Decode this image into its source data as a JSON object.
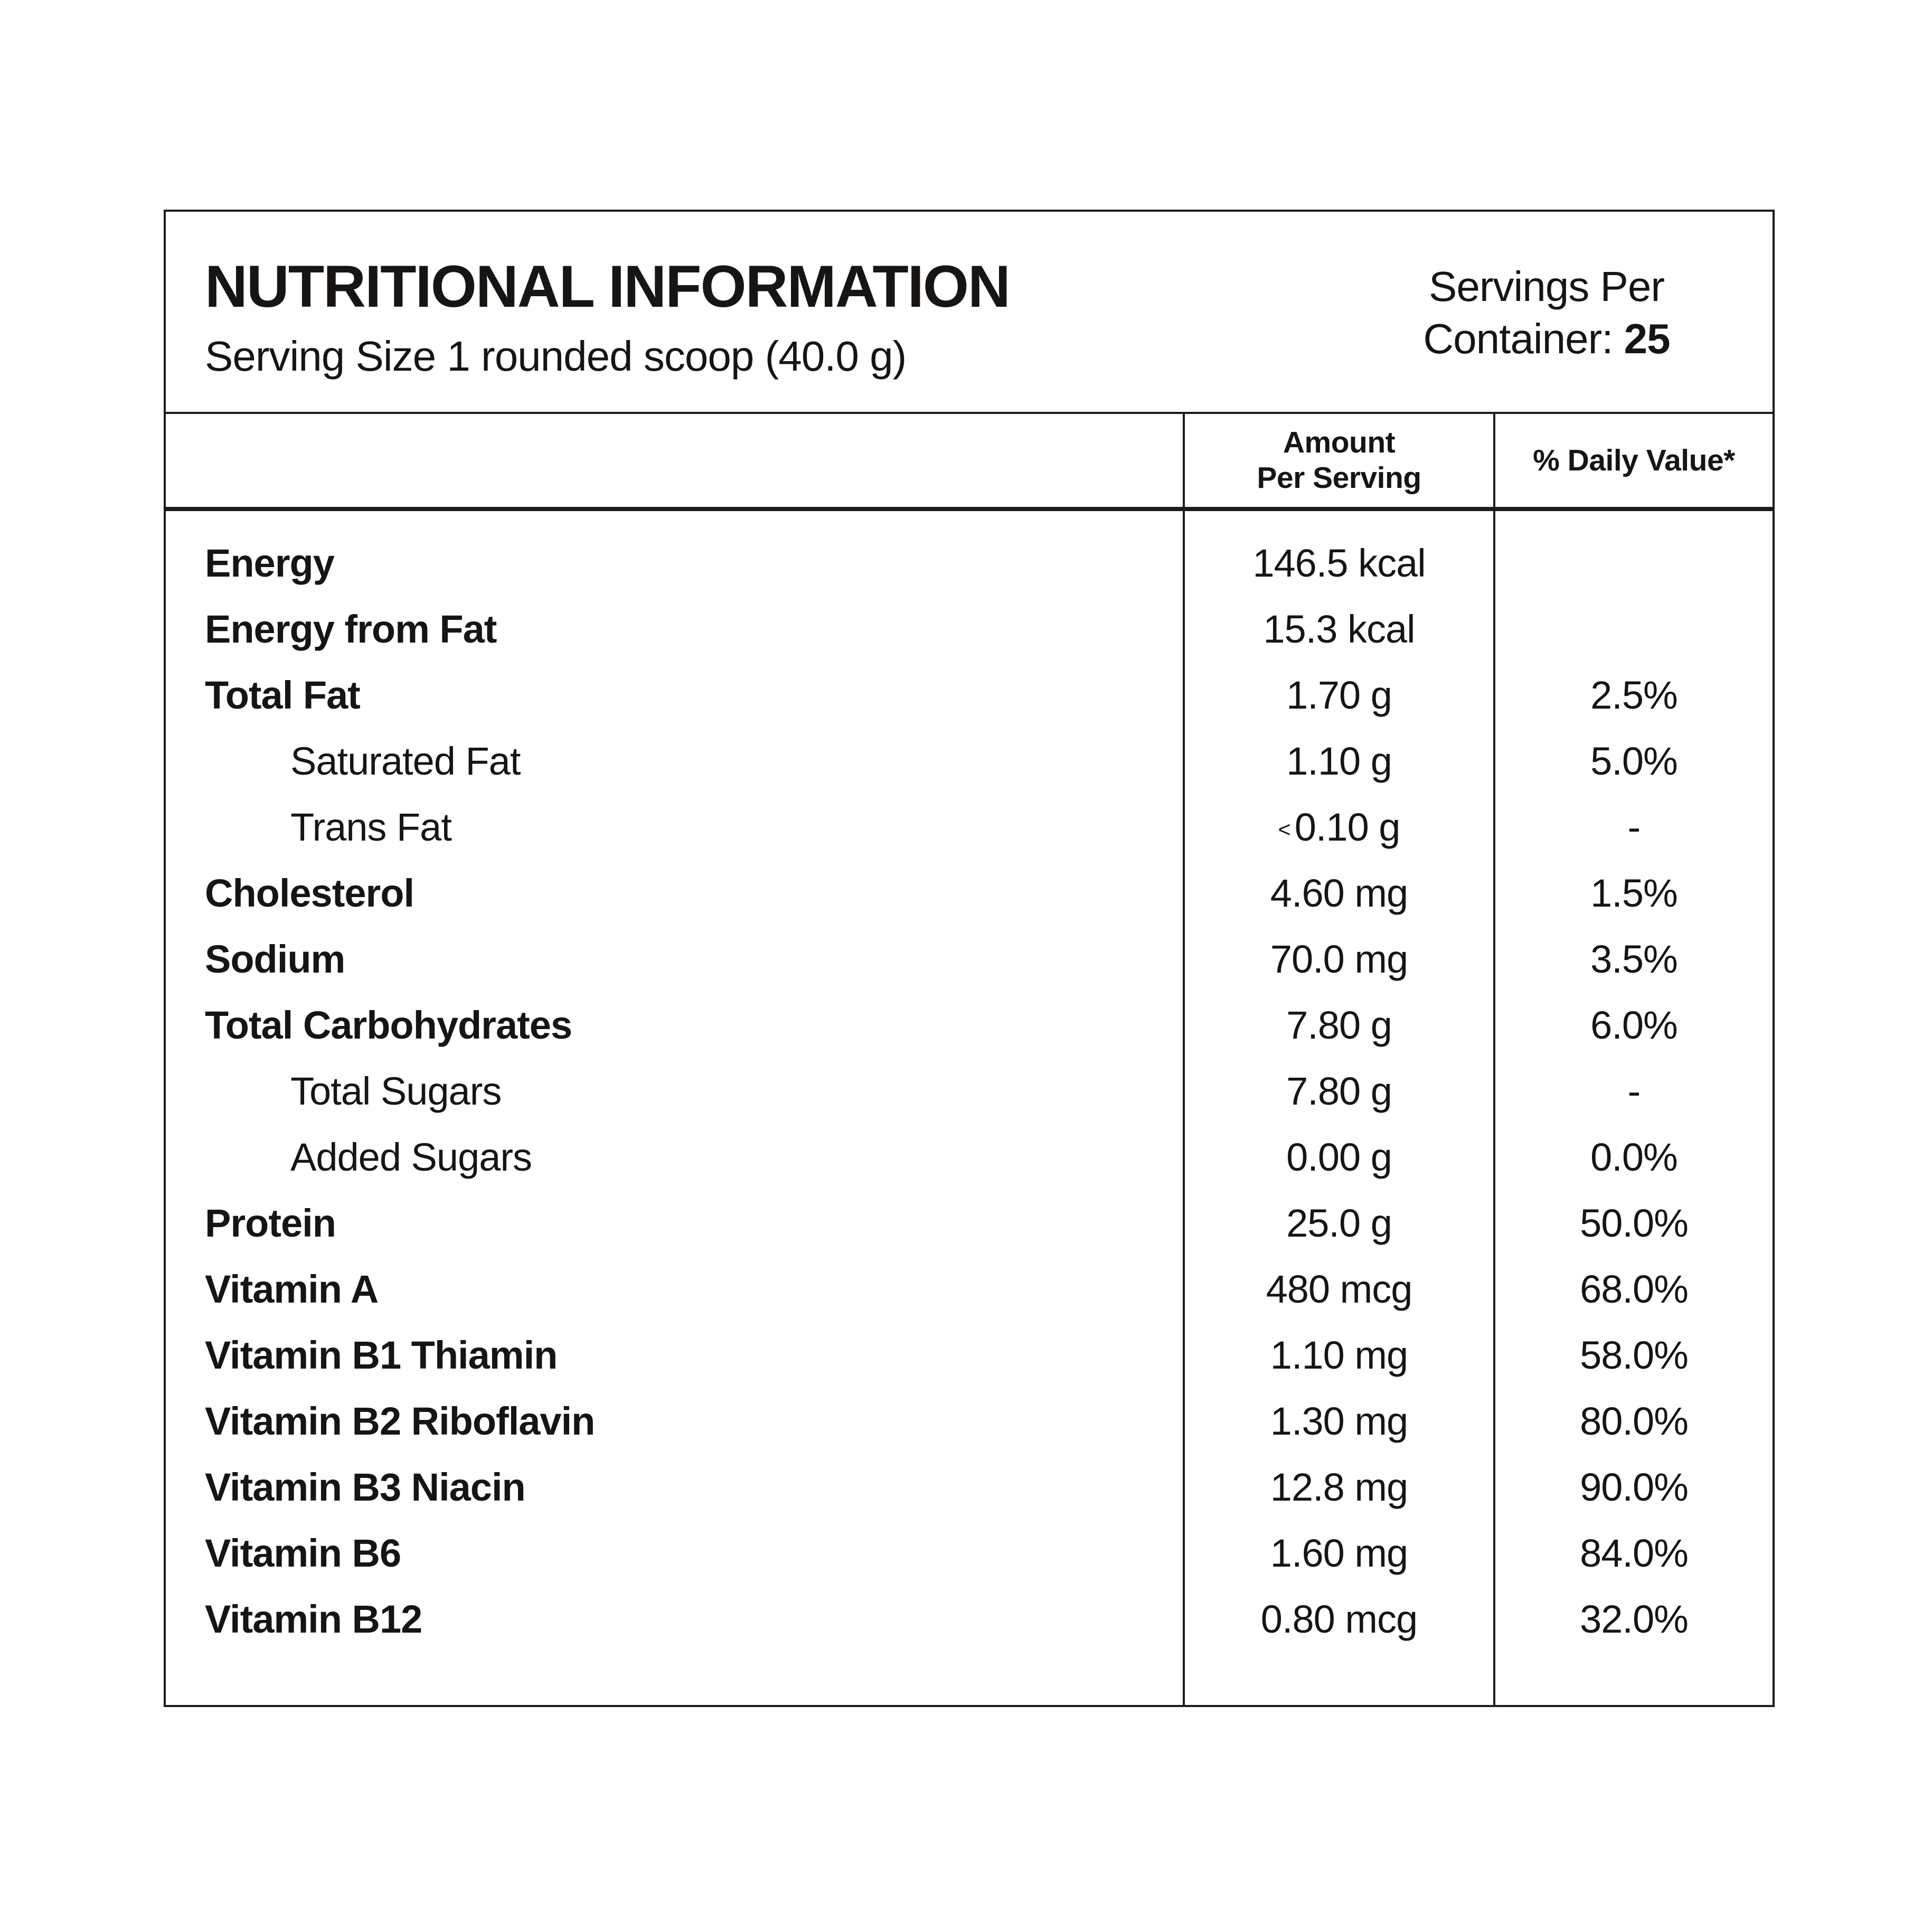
{
  "page": {
    "background": "#ffffff",
    "text_color": "#171513",
    "border_color": "#1c1c1c"
  },
  "header": {
    "title": "NUTRITIONAL INFORMATION",
    "serving_size": "Serving Size 1 rounded scoop (40.0 g)",
    "servings_line1": "Servings Per",
    "servings_label": "Container: ",
    "servings_value": "25"
  },
  "columns": {
    "amount_line1": "Amount",
    "amount_line2": "Per Serving",
    "daily_value": "% Daily Value*"
  },
  "rows": [
    {
      "label": "Energy",
      "style": "bold",
      "amount_prefix": "",
      "amount": "146.5 kcal",
      "daily_value": ""
    },
    {
      "label": "Energy from Fat",
      "style": "bold",
      "amount_prefix": "",
      "amount": "15.3 kcal",
      "daily_value": ""
    },
    {
      "label": "Total Fat",
      "style": "bold",
      "amount_prefix": "",
      "amount": "1.70 g",
      "daily_value": "2.5%"
    },
    {
      "label": "Saturated Fat",
      "style": "indent",
      "amount_prefix": "",
      "amount": "1.10 g",
      "daily_value": "5.0%"
    },
    {
      "label": "Trans Fat",
      "style": "indent",
      "amount_prefix": "<",
      "amount": "0.10 g",
      "daily_value": "-"
    },
    {
      "label": "Cholesterol",
      "style": "bold",
      "amount_prefix": "",
      "amount": "4.60 mg",
      "daily_value": "1.5%"
    },
    {
      "label": "Sodium",
      "style": "bold",
      "amount_prefix": "",
      "amount": "70.0 mg",
      "daily_value": "3.5%"
    },
    {
      "label": "Total Carbohydrates",
      "style": "bold",
      "amount_prefix": "",
      "amount": "7.80 g",
      "daily_value": "6.0%"
    },
    {
      "label": "Total Sugars",
      "style": "indent",
      "amount_prefix": "",
      "amount": "7.80 g",
      "daily_value": "-"
    },
    {
      "label": "Added Sugars",
      "style": "indent",
      "amount_prefix": "",
      "amount": "0.00 g",
      "daily_value": "0.0%"
    },
    {
      "label": "Protein",
      "style": "bold",
      "amount_prefix": "",
      "amount": "25.0 g",
      "daily_value": "50.0%"
    },
    {
      "label": "Vitamin A",
      "style": "bold",
      "amount_prefix": "",
      "amount": "480 mcg",
      "daily_value": "68.0%"
    },
    {
      "label": "Vitamin B1 Thiamin",
      "style": "bold",
      "amount_prefix": "",
      "amount": "1.10 mg",
      "daily_value": "58.0%"
    },
    {
      "label": "Vitamin B2 Riboflavin",
      "style": "bold",
      "amount_prefix": "",
      "amount": "1.30 mg",
      "daily_value": "80.0%"
    },
    {
      "label": "Vitamin B3 Niacin",
      "style": "bold",
      "amount_prefix": "",
      "amount": "12.8 mg",
      "daily_value": "90.0%"
    },
    {
      "label": "Vitamin B6",
      "style": "bold",
      "amount_prefix": "",
      "amount": "1.60 mg",
      "daily_value": "84.0%"
    },
    {
      "label": "Vitamin B12",
      "style": "bold",
      "amount_prefix": "",
      "amount": "0.80 mcg",
      "daily_value": "32.0%"
    }
  ]
}
